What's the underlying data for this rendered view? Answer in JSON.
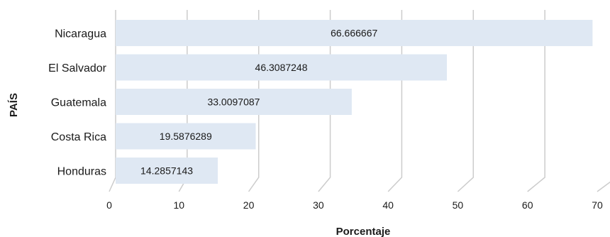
{
  "chart_data": {
    "type": "bar",
    "orientation": "horizontal",
    "categories": [
      "Nicaragua",
      "El Salvador",
      "Guatemala",
      "Costa Rica",
      "Honduras"
    ],
    "values": [
      66.666667,
      46.3087248,
      33.0097087,
      19.5876289,
      14.2857143
    ],
    "value_labels": [
      "66.666667",
      "46.3087248",
      "33.0097087",
      "19.5876289",
      "14.2857143"
    ],
    "xlabel": "Porcentaje",
    "ylabel": "PAÍS",
    "xlim": [
      0,
      70
    ],
    "xticks": [
      "0",
      "10",
      "20",
      "30",
      "40",
      "50",
      "60",
      "70"
    ],
    "grid": true,
    "bar_color": "#dfe8f3"
  }
}
